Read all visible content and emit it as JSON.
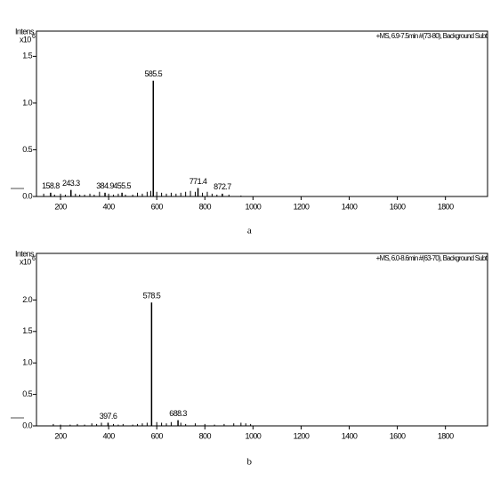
{
  "chart_data": [
    {
      "type": "stem",
      "y_label": "Intens.",
      "y_scale": "x10",
      "y_scale_exp": "6",
      "annotation": "+MS, 6.9-7.5min #(73-80), Background Subt",
      "caption": "a",
      "color": "#000000",
      "x": [
        130,
        175,
        200,
        220,
        262,
        280,
        300,
        322,
        340,
        362,
        400,
        420,
        440,
        470,
        500,
        520,
        540,
        560,
        575,
        600,
        620,
        640,
        660,
        680,
        700,
        720,
        740,
        760,
        790,
        810,
        830,
        850,
        900,
        950
      ],
      "values": [
        0.03,
        0.02,
        0.03,
        0.02,
        0.03,
        0.02,
        0.02,
        0.03,
        0.02,
        0.05,
        0.03,
        0.02,
        0.03,
        0.02,
        0.02,
        0.04,
        0.03,
        0.05,
        0.06,
        0.05,
        0.04,
        0.03,
        0.04,
        0.03,
        0.04,
        0.05,
        0.06,
        0.05,
        0.04,
        0.05,
        0.03,
        0.02,
        0.02,
        0.01
      ],
      "labeled_peaks": {
        "x": [
          158.8,
          243.3,
          384.9,
          455.5,
          585.5,
          771.4,
          872.7
        ],
        "values": [
          0.04,
          0.07,
          0.04,
          0.04,
          1.24,
          0.09,
          0.03
        ]
      },
      "xlim": [
        100,
        1975
      ],
      "xticks": [
        200,
        400,
        600,
        800,
        1000,
        1200,
        1400,
        1600,
        1800
      ],
      "ylim": [
        0,
        1.77
      ],
      "yticks": [
        {
          "value": 0,
          "label": "0.0"
        },
        0.5,
        {
          "value": 1,
          "label": "1.0"
        },
        1.5
      ]
    },
    {
      "type": "stem",
      "y_label": "Intens.",
      "y_scale": "x10",
      "y_scale_exp": "6",
      "annotation": "+MS, 6.0-8.6min #(63-70), Background Subt",
      "caption": "b",
      "color": "#000000",
      "x": [
        170,
        200,
        240,
        270,
        300,
        330,
        350,
        370,
        420,
        440,
        460,
        500,
        520,
        540,
        560,
        600,
        620,
        640,
        660,
        700,
        720,
        760,
        800,
        840,
        880,
        920,
        950,
        970,
        990
      ],
      "values": [
        0.03,
        0.02,
        0.02,
        0.03,
        0.02,
        0.04,
        0.03,
        0.05,
        0.03,
        0.02,
        0.03,
        0.02,
        0.03,
        0.04,
        0.05,
        0.06,
        0.05,
        0.04,
        0.06,
        0.05,
        0.03,
        0.04,
        0.03,
        0.02,
        0.03,
        0.04,
        0.05,
        0.04,
        0.03
      ],
      "labeled_peaks": {
        "x": [
          397.6,
          578.5,
          688.3
        ],
        "values": [
          0.05,
          1.96,
          0.09
        ]
      },
      "xlim": [
        100,
        1975
      ],
      "xticks": [
        200,
        400,
        600,
        800,
        1000,
        1200,
        1400,
        1600,
        1800
      ],
      "ylim": [
        0,
        2.74
      ],
      "yticks": [
        {
          "value": 0,
          "label": "0.0"
        },
        0.5,
        {
          "value": 1,
          "label": "1.0"
        },
        1.5,
        {
          "value": 2,
          "label": "2.0"
        }
      ]
    }
  ]
}
